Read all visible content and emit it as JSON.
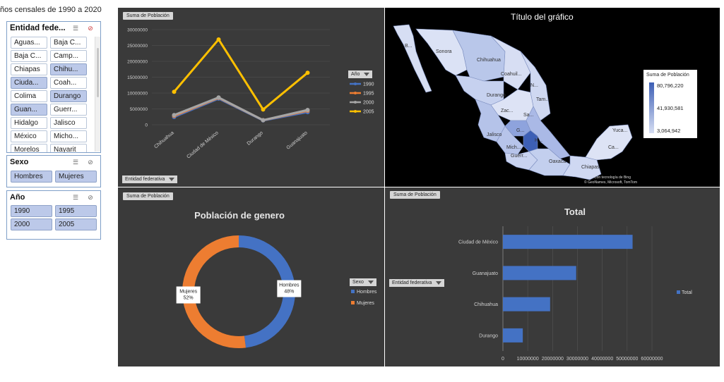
{
  "page_title": "ños censales de 1990 a 2020",
  "slicers": {
    "entidad": {
      "title": "Entidad fede...",
      "items": [
        {
          "label": "Aguas...",
          "selected": false
        },
        {
          "label": "Baja C...",
          "selected": false
        },
        {
          "label": "Baja C...",
          "selected": false
        },
        {
          "label": "Camp...",
          "selected": false
        },
        {
          "label": "Chiapas",
          "selected": false
        },
        {
          "label": "Chihu...",
          "selected": true
        },
        {
          "label": "Ciuda...",
          "selected": true
        },
        {
          "label": "Coah...",
          "selected": false
        },
        {
          "label": "Colima",
          "selected": false
        },
        {
          "label": "Durango",
          "selected": true
        },
        {
          "label": "Guan...",
          "selected": true
        },
        {
          "label": "Guerr...",
          "selected": false
        },
        {
          "label": "Hidalgo",
          "selected": false
        },
        {
          "label": "Jalisco",
          "selected": false
        },
        {
          "label": "México",
          "selected": false
        },
        {
          "label": "Micho...",
          "selected": false
        },
        {
          "label": "Morelos",
          "selected": false
        },
        {
          "label": "Nayarit",
          "selected": false
        }
      ]
    },
    "sexo": {
      "title": "Sexo",
      "items": [
        {
          "label": "Hombres",
          "selected": true
        },
        {
          "label": "Mujeres",
          "selected": true
        }
      ]
    },
    "anio": {
      "title": "Año",
      "items": [
        {
          "label": "1990",
          "selected": true
        },
        {
          "label": "1995",
          "selected": true
        },
        {
          "label": "2000",
          "selected": true
        },
        {
          "label": "2005",
          "selected": true
        }
      ]
    }
  },
  "line_panel": {
    "field_button": "Suma de Población",
    "axis_filter": "Entidad federativa",
    "legend_filter": "Año"
  },
  "map_panel": {
    "title": "Título del gráfico",
    "legend_title": "Suma de Población",
    "legend_values": [
      "80,796,220",
      "41,930,581",
      "3,064,942"
    ],
    "colors": {
      "low": "#d6def3",
      "high": "#3d5fb5",
      "background": "#000000"
    },
    "state_labels": [
      "B...",
      "Sonora",
      "Chihuahua",
      "Coahuil...",
      "N...",
      "Durango",
      "Tam...",
      "Zac...",
      "Sa...",
      "Jalisco",
      "G...",
      "H...",
      "Mich...",
      "Guerr...",
      "Oaxaca",
      "Chiapas",
      "Yuca...",
      "Ca..."
    ],
    "credits": [
      "Con tecnología de Bing",
      "© GeoNames, Microsoft, TomTom"
    ]
  },
  "donut_panel": {
    "field_button": "Suma de Población",
    "legend_filter": "Sexo"
  },
  "bar_panel": {
    "field_button": "Suma de Población",
    "axis_filter": "Entidad federativa"
  },
  "chart_data": [
    {
      "type": "line",
      "title": "",
      "categories": [
        "Chihuahua",
        "Ciudad de México",
        "Durango",
        "Guanajuato"
      ],
      "series": [
        {
          "name": "1990",
          "color": "#4472c4",
          "values": [
            2441873,
            8235744,
            1349378,
            3982593
          ]
        },
        {
          "name": "1995",
          "color": "#ed7d31",
          "values": [
            2793537,
            8489007,
            1431748,
            4406568
          ]
        },
        {
          "name": "2000",
          "color": "#a5a5a5",
          "values": [
            3052907,
            8605239,
            1448661,
            4663032
          ]
        },
        {
          "name": "2005",
          "color": "#ffc000",
          "values": [
            10400000,
            26900000,
            4800000,
            16400000
          ]
        }
      ],
      "ylim": [
        0,
        30000000
      ],
      "yticks": [
        "30000000",
        "25000000",
        "20000000",
        "15000000",
        "10000000",
        "5000000",
        "0"
      ],
      "legend": "right",
      "grid": true
    },
    {
      "type": "pie",
      "title": "Población de genero",
      "series": [
        {
          "name": "Hombres",
          "color": "#4472c4",
          "value": 48,
          "label": "Hombres\n48%"
        },
        {
          "name": "Mujeres",
          "color": "#ed7d31",
          "value": 52,
          "label": "Mujeres\n52%"
        }
      ],
      "legend": "right"
    },
    {
      "type": "bar",
      "orientation": "horizontal",
      "title": "Total",
      "categories": [
        "Ciudad de México",
        "Guanajuato",
        "Chihuahua",
        "Durango"
      ],
      "series": [
        {
          "name": "Total",
          "color": "#4472c4",
          "values": [
            52200000,
            29500000,
            19000000,
            8000000
          ]
        }
      ],
      "xlim": [
        0,
        60000000
      ],
      "xticks": [
        "0",
        "10000000",
        "20000000",
        "30000000",
        "40000000",
        "50000000",
        "60000000"
      ],
      "legend": "right",
      "grid": true
    }
  ]
}
